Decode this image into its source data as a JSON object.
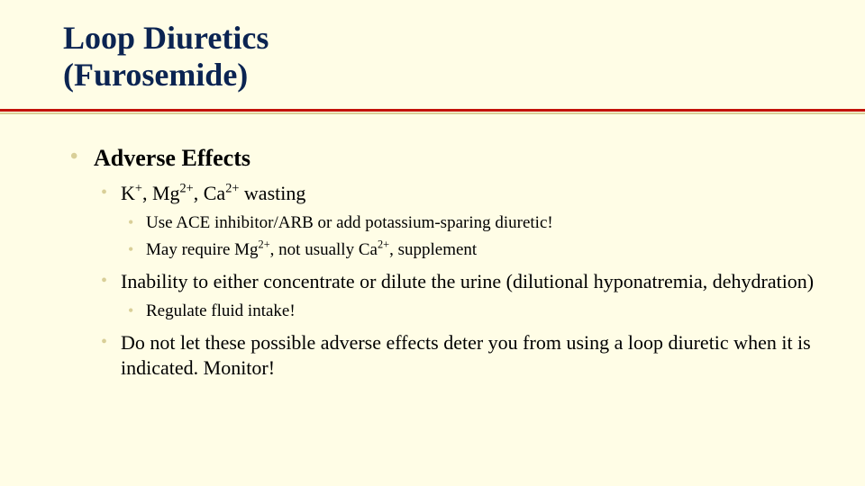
{
  "colors": {
    "background": "#fffde6",
    "title_text": "#0b2452",
    "body_text": "#000000",
    "bullet": "#d9cf98",
    "rule_red": "#c3120a",
    "rule_tan": "#d9cf98"
  },
  "typography": {
    "family": "Times New Roman",
    "title_size_pt": 28,
    "l1_size_pt": 20,
    "l2_size_pt": 17,
    "l3_size_pt": 14
  },
  "title_line1": "Loop Diuretics",
  "title_line2": "(Furosemide)",
  "section_heading": "Adverse Effects",
  "b1": {
    "pre": "K",
    "sup1": "+",
    "mid1": ", Mg",
    "sup2": "2+",
    "mid2": ", Ca",
    "sup3": "2+",
    "post": " wasting",
    "sub1": "Use ACE inhibitor/ARB or add potassium-sparing diuretic!",
    "sub2_pre": "May require Mg",
    "sub2_sup1": "2+",
    "sub2_mid": ", not usually Ca",
    "sub2_sup2": "2+",
    "sub2_post": ", supplement"
  },
  "b2": {
    "text": "Inability to either concentrate or dilute the urine (dilutional hyponatremia, dehydration)",
    "sub1": "Regulate fluid intake!"
  },
  "b3": {
    "text": "Do not let these possible adverse effects deter you from using a loop diuretic when it is indicated.  Monitor!"
  }
}
